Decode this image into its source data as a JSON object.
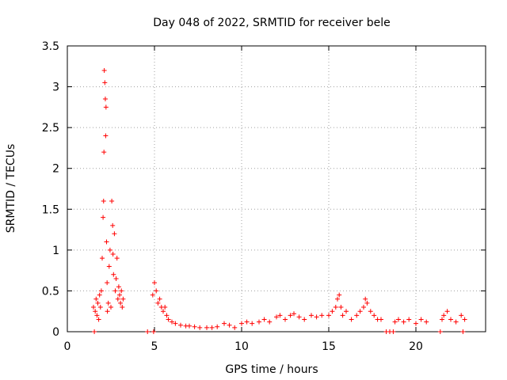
{
  "chart_data": {
    "type": "scatter",
    "title": "Day 048 of 2022, SRMTID for receiver bele",
    "xlabel": "GPS time / hours",
    "ylabel": "SRMTID / TECUs",
    "xlim": [
      0,
      24
    ],
    "ylim": [
      0,
      3.5
    ],
    "xticks": [
      0,
      5,
      10,
      15,
      20
    ],
    "yticks": [
      0,
      0.5,
      1,
      1.5,
      2,
      2.5,
      3,
      3.5
    ],
    "xtick_labels": [
      "0",
      "5",
      "10",
      "15",
      "20"
    ],
    "ytick_labels": [
      "0",
      "0.5",
      "1",
      "1.5",
      "2",
      "2.5",
      "3",
      "3.5"
    ],
    "grid": true,
    "marker": "+",
    "color": "#ff0000",
    "series": [
      {
        "name": "bele",
        "x": [
          1.5,
          1.6,
          1.65,
          1.7,
          1.75,
          1.8,
          1.85,
          1.9,
          1.95,
          2.0,
          2.05,
          2.08,
          2.1,
          2.12,
          2.15,
          2.18,
          2.2,
          2.22,
          2.25,
          2.28,
          2.3,
          2.35,
          2.4,
          2.45,
          2.5,
          2.55,
          2.6,
          2.62,
          2.65,
          2.7,
          2.75,
          2.8,
          2.85,
          2.9,
          2.95,
          3.0,
          3.05,
          3.1,
          3.15,
          3.2,
          4.9,
          5.0,
          5.1,
          5.2,
          5.3,
          5.4,
          5.5,
          5.6,
          5.7,
          5.8,
          6.0,
          6.2,
          6.5,
          6.8,
          7.0,
          7.3,
          7.6,
          8.0,
          8.3,
          8.6,
          9.0,
          9.3,
          9.6,
          10.0,
          10.3,
          10.6,
          11.0,
          11.3,
          11.6,
          12.0,
          12.2,
          12.5,
          12.8,
          13.0,
          13.3,
          13.6,
          14.0,
          14.3,
          14.6,
          15.0,
          15.2,
          15.4,
          15.5,
          15.6,
          15.7,
          15.8,
          16.0,
          16.3,
          16.6,
          16.8,
          17.0,
          17.1,
          17.2,
          17.4,
          17.6,
          17.8,
          18.0,
          18.8,
          19.0,
          19.3,
          19.6,
          20.0,
          20.3,
          20.6,
          21.5,
          21.6,
          21.8,
          22.0,
          22.3,
          22.6,
          22.8,
          1.55,
          4.6,
          4.95,
          18.3,
          18.5,
          18.7,
          21.4,
          22.7
        ],
        "y": [
          0.3,
          0.25,
          0.4,
          0.2,
          0.35,
          0.15,
          0.45,
          0.3,
          0.5,
          0.9,
          1.4,
          1.6,
          2.2,
          3.2,
          3.05,
          2.85,
          2.4,
          2.75,
          1.1,
          0.6,
          0.25,
          0.35,
          0.8,
          1.0,
          0.3,
          1.6,
          1.3,
          0.95,
          0.7,
          1.2,
          0.5,
          0.65,
          0.9,
          0.4,
          0.55,
          0.45,
          0.35,
          0.5,
          0.3,
          0.4,
          0.45,
          0.6,
          0.5,
          0.35,
          0.4,
          0.3,
          0.25,
          0.3,
          0.2,
          0.15,
          0.12,
          0.1,
          0.08,
          0.07,
          0.07,
          0.06,
          0.05,
          0.05,
          0.05,
          0.06,
          0.1,
          0.08,
          0.05,
          0.1,
          0.12,
          0.1,
          0.12,
          0.15,
          0.12,
          0.18,
          0.2,
          0.15,
          0.2,
          0.22,
          0.18,
          0.15,
          0.2,
          0.18,
          0.2,
          0.2,
          0.25,
          0.3,
          0.4,
          0.45,
          0.3,
          0.2,
          0.25,
          0.15,
          0.2,
          0.25,
          0.3,
          0.4,
          0.35,
          0.25,
          0.2,
          0.15,
          0.15,
          0.12,
          0.15,
          0.12,
          0.15,
          0.1,
          0.15,
          0.12,
          0.15,
          0.2,
          0.25,
          0.15,
          0.12,
          0.2,
          0.15,
          0.0,
          0.0,
          0.0,
          0.0,
          0.0,
          0.0,
          0.0,
          0.0
        ]
      }
    ]
  }
}
